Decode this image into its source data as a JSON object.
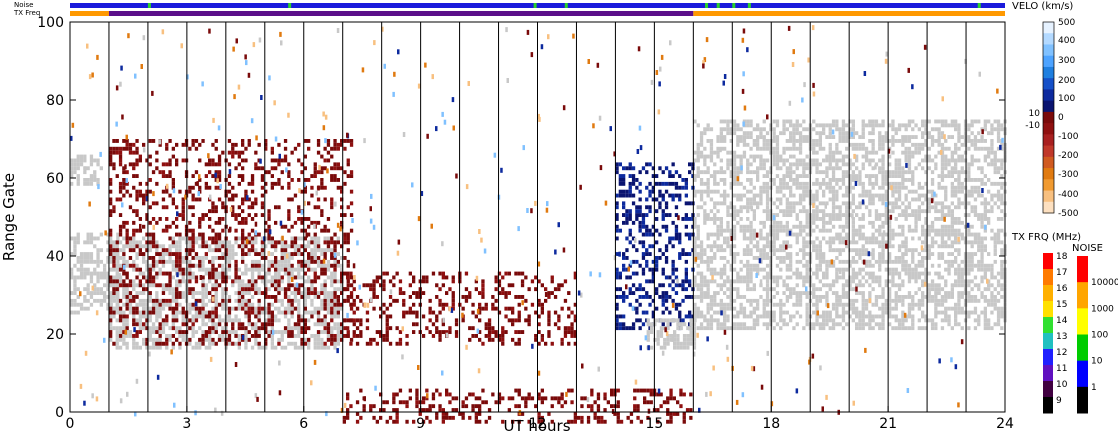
{
  "chart_data": {
    "type": "heatmap",
    "xlabel": "UT hours",
    "ylabel": "Range Gate",
    "xlim": [
      0,
      24
    ],
    "ylim": [
      0,
      100
    ],
    "xticks": [
      0,
      3,
      6,
      9,
      12,
      15,
      18,
      21,
      24
    ],
    "yticks": [
      0,
      20,
      40,
      60,
      80,
      100
    ],
    "vertical_lines_ut": [
      1,
      2,
      3,
      4,
      5,
      6,
      7,
      8,
      9,
      10,
      11,
      12,
      13,
      14,
      15,
      16,
      17,
      18,
      19,
      20,
      21,
      22,
      23
    ],
    "top_bars": {
      "noise_label": "Noise",
      "txfreq_label": "TX Freq",
      "noise_bar_color": "#1a1adb",
      "noise_marks_ut": [
        2.0,
        5.6,
        11.9,
        12.7,
        16.3,
        16.6,
        17.0,
        17.4,
        23.3
      ],
      "noise_mark_color": "#2ad12a",
      "txfreq_segments": [
        {
          "start": 0.0,
          "end": 1.0,
          "color": "#ff9900"
        },
        {
          "start": 1.0,
          "end": 16.0,
          "color": "#5b0f8a"
        },
        {
          "start": 16.0,
          "end": 24.0,
          "color": "#ff9900"
        }
      ]
    },
    "velocity_colorbar": {
      "title": "VELO (km/s)",
      "ticks": [
        "500",
        "400",
        "300",
        "200",
        "100",
        "10",
        "0",
        "-10",
        "-100",
        "-200",
        "-300",
        "-400",
        "-500"
      ],
      "colors_top_to_bottom": [
        "#e6f2ff",
        "#b3d9ff",
        "#80c1ff",
        "#4da3ff",
        "#1f7fe0",
        "#1550c8",
        "#0d2a9e",
        "#0a1470",
        "#7a0a0a",
        "#8f1010",
        "#a82020",
        "#c0382a",
        "#d05a20",
        "#e07a10",
        "#f09a30",
        "#f8c080",
        "#fde0c0"
      ]
    },
    "txfreq_colorbar": {
      "title": "TX FRQ (MHz)",
      "ticks": [
        "18",
        "17",
        "16",
        "15",
        "14",
        "13",
        "12",
        "11",
        "10",
        "9"
      ],
      "colors_top_to_bottom": [
        "#ff0000",
        "#ff7a00",
        "#ffb000",
        "#ffe000",
        "#30e030",
        "#20c0c0",
        "#2020ff",
        "#6010c0",
        "#400040",
        "#000000"
      ]
    },
    "noise_colorbar": {
      "title": "NOISE",
      "ticks": [
        "10000",
        "1000",
        "100",
        "10",
        "1"
      ],
      "colors_top_to_bottom": [
        "#ff0000",
        "#ffa500",
        "#ffff00",
        "#00cc00",
        "#0000ff",
        "#000000"
      ]
    },
    "regions": [
      {
        "name": "ground scatter early",
        "kind": "ground",
        "x0": 0.0,
        "x1": 1.2,
        "y0": 26,
        "y1": 46
      },
      {
        "name": "ground scatter early top",
        "kind": "ground",
        "x0": 0.0,
        "x1": 0.8,
        "y0": 58,
        "y1": 66
      },
      {
        "name": "ground scatter band 1-7",
        "kind": "ground",
        "x0": 1.0,
        "x1": 7.0,
        "y0": 17,
        "y1": 45
      },
      {
        "name": "negative velocity 1-7",
        "kind": "neg",
        "x0": 1.0,
        "x1": 7.2,
        "y0": 18,
        "y1": 70
      },
      {
        "name": "negative velocity 8-12",
        "kind": "neg",
        "x0": 7.0,
        "x1": 13.0,
        "y0": 18,
        "y1": 36
      },
      {
        "name": "positive velocity 14-16",
        "kind": "pos",
        "x0": 14.0,
        "x1": 16.0,
        "y0": 22,
        "y1": 64
      },
      {
        "name": "ground scatter 15-16",
        "kind": "ground",
        "x0": 14.8,
        "x1": 16.0,
        "y0": 17,
        "y1": 24
      },
      {
        "name": "ground scatter late",
        "kind": "ground",
        "x0": 16.0,
        "x1": 24.0,
        "y0": 22,
        "y1": 75
      },
      {
        "name": "negative near ground",
        "kind": "neg",
        "x0": 7.0,
        "x1": 16.0,
        "y0": -2,
        "y1": 6
      }
    ]
  }
}
